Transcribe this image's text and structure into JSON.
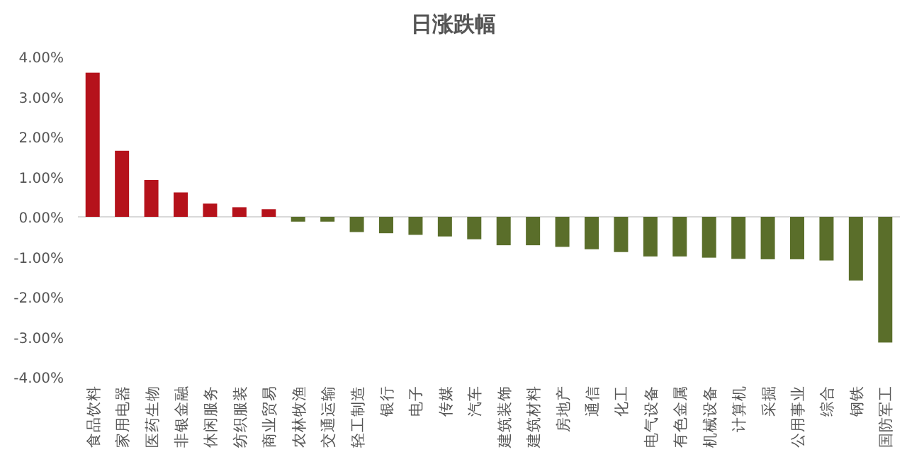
{
  "chart_data": {
    "type": "bar",
    "title": "日涨跌幅",
    "categories": [
      "食品饮料",
      "家用电器",
      "医药生物",
      "非银金融",
      "休闲服务",
      "纺织服装",
      "商业贸易",
      "农林牧渔",
      "交通运输",
      "轻工制造",
      "银行",
      "电子",
      "传媒",
      "汽车",
      "建筑装饰",
      "建筑材料",
      "房地产",
      "通信",
      "化工",
      "电气设备",
      "有色金属",
      "机械设备",
      "计算机",
      "采掘",
      "公用事业",
      "综合",
      "钢铁",
      "国防军工"
    ],
    "values": [
      3.6,
      1.65,
      0.92,
      0.61,
      0.33,
      0.24,
      0.19,
      -0.12,
      -0.12,
      -0.38,
      -0.41,
      -0.45,
      -0.49,
      -0.56,
      -0.71,
      -0.71,
      -0.75,
      -0.81,
      -0.88,
      -0.99,
      -0.99,
      -1.02,
      -1.05,
      -1.06,
      -1.06,
      -1.09,
      -1.59,
      -3.14
    ],
    "colors": [
      "#b5121b",
      "#b5121b",
      "#b5121b",
      "#b5121b",
      "#b5121b",
      "#b5121b",
      "#b5121b",
      "#5a6e2a",
      "#5a6e2a",
      "#5a6e2a",
      "#5a6e2a",
      "#5a6e2a",
      "#5a6e2a",
      "#5a6e2a",
      "#5a6e2a",
      "#5a6e2a",
      "#5a6e2a",
      "#5a6e2a",
      "#5a6e2a",
      "#5a6e2a",
      "#5a6e2a",
      "#5a6e2a",
      "#5a6e2a",
      "#5a6e2a",
      "#5a6e2a",
      "#5a6e2a",
      "#5a6e2a",
      "#5a6e2a"
    ],
    "ylim": [
      -4,
      4
    ],
    "yticks": [
      {
        "value": 4,
        "label": "4.00%"
      },
      {
        "value": 3,
        "label": "3.00%"
      },
      {
        "value": 2,
        "label": "2.00%"
      },
      {
        "value": 1,
        "label": "1.00%"
      },
      {
        "value": 0,
        "label": "0.00%"
      },
      {
        "value": -1,
        "label": "-1.00%"
      },
      {
        "value": -2,
        "label": "-2.00%"
      },
      {
        "value": -3,
        "label": "-3.00%"
      },
      {
        "value": -4,
        "label": "-4.00%"
      }
    ]
  }
}
